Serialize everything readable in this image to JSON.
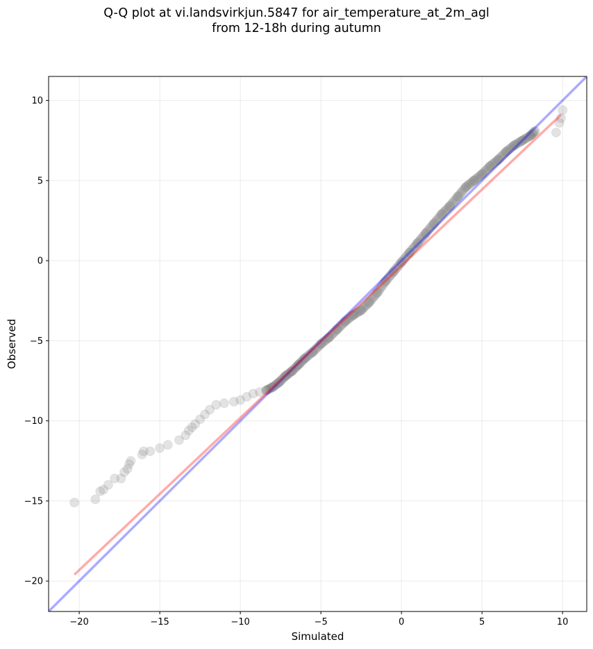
{
  "chart_data": {
    "type": "scatter",
    "title_line1": "Q-Q plot at vi.landsvirkjun.5847 for air_temperature_at_2m_agl",
    "title_line2": "from 12-18h during autumn",
    "xlabel": "Simulated",
    "ylabel": "Observed",
    "xlim": [
      -21.9,
      11.5
    ],
    "ylim": [
      -21.9,
      11.5
    ],
    "xticks": [
      -20,
      -15,
      -10,
      -5,
      0,
      5,
      10
    ],
    "yticks": [
      -20,
      -15,
      -10,
      -5,
      0,
      5,
      10
    ],
    "grid": true,
    "colors": {
      "points": "#808080",
      "identity_line": "#0000ff",
      "fit_line": "#ff0000"
    },
    "identity_line": {
      "name": "",
      "x": [
        -21.9,
        11.5
      ],
      "y": [
        -21.9,
        11.5
      ]
    },
    "fit_line": {
      "name": "",
      "x": [
        -20.3,
        9.9
      ],
      "y": [
        -19.6,
        9.1
      ]
    },
    "quantiles": {
      "x": [
        -20.3,
        -19.0,
        -18.7,
        -18.5,
        -18.2,
        -17.8,
        -17.4,
        -17.2,
        -17.0,
        -16.9,
        -16.8,
        -16.1,
        -16.0,
        -15.6,
        -15.0,
        -14.5,
        -13.8,
        -13.4,
        -13.2,
        -13.0,
        -12.8,
        -12.5,
        -12.2,
        -11.9,
        -11.5,
        -11.0,
        -10.4,
        -10.0,
        -9.6,
        -9.2,
        -8.8,
        -8.4,
        -8.0,
        -7.6,
        -7.2,
        -6.8,
        -6.4,
        -6.0,
        -5.5,
        -5.0,
        -4.5,
        -4.0,
        -3.5,
        -3.0,
        -2.5,
        -2.0,
        -1.5,
        -1.0,
        -0.5,
        0.0,
        0.5,
        1.0,
        1.5,
        2.0,
        2.5,
        3.0,
        3.5,
        4.0,
        4.5,
        5.0,
        5.5,
        6.0,
        6.5,
        7.0,
        7.5,
        8.0,
        8.3,
        9.6,
        9.8,
        9.9,
        10.0
      ],
      "y": [
        -15.1,
        -14.9,
        -14.4,
        -14.3,
        -14.0,
        -13.6,
        -13.6,
        -13.2,
        -13.0,
        -12.7,
        -12.5,
        -12.1,
        -11.9,
        -11.9,
        -11.7,
        -11.5,
        -11.2,
        -10.9,
        -10.6,
        -10.4,
        -10.2,
        -9.9,
        -9.6,
        -9.3,
        -9.0,
        -8.9,
        -8.8,
        -8.7,
        -8.5,
        -8.3,
        -8.2,
        -8.1,
        -7.9,
        -7.6,
        -7.2,
        -6.9,
        -6.5,
        -6.1,
        -5.7,
        -5.2,
        -4.8,
        -4.3,
        -3.8,
        -3.4,
        -3.1,
        -2.6,
        -2.0,
        -1.3,
        -0.7,
        -0.1,
        0.5,
        1.1,
        1.7,
        2.3,
        2.9,
        3.4,
        4.0,
        4.6,
        5.0,
        5.4,
        5.9,
        6.3,
        6.8,
        7.2,
        7.5,
        7.8,
        8.1,
        8.0,
        8.6,
        8.9,
        9.4
      ]
    }
  }
}
